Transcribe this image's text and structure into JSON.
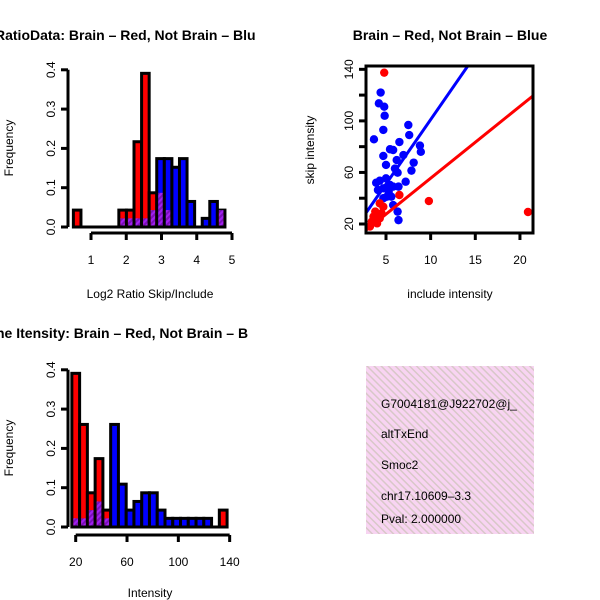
{
  "colors": {
    "brain": "#ff0000",
    "not_brain": "#0000ff",
    "overlap": "#a020f0",
    "pval": "#c00000",
    "info_bg": "#f8d4f2"
  },
  "chart_data": [
    {
      "type": "bar",
      "subtype": "overlaid-histogram",
      "title": "RatioData: Brain – Red, Not Brain – Blu",
      "xlabel": "Log2 Ratio Skip/Include",
      "ylabel": "Frequency",
      "xlim": [
        0.5,
        5
      ],
      "ylim": [
        0,
        0.4
      ],
      "xticks": [
        "1",
        "2",
        "3",
        "4",
        "5"
      ],
      "yticks": [
        "0.0",
        "0.1",
        "0.2",
        "0.3",
        "0.4"
      ],
      "bin_start": 0.5,
      "bin_width": 0.215,
      "series": [
        {
          "name": "Brain",
          "color": "red",
          "values": [
            0.043,
            0,
            0,
            0,
            0,
            0,
            0.043,
            0.043,
            0.217,
            0.391,
            0.087,
            0.087,
            0.043,
            0,
            0,
            0,
            0,
            0,
            0,
            0.043
          ]
        },
        {
          "name": "Not Brain",
          "color": "blue",
          "values": [
            0,
            0,
            0,
            0,
            0,
            0,
            0.022,
            0.022,
            0.022,
            0.022,
            0.043,
            0.174,
            0.174,
            0.152,
            0.174,
            0.065,
            0,
            0.022,
            0.065,
            0.043
          ]
        }
      ]
    },
    {
      "type": "scatter",
      "title": "Brain – Red, Not Brain – Blue",
      "xlabel": "include intensity",
      "ylabel": "skip intensity",
      "xlim": [
        2.7,
        21.4
      ],
      "ylim": [
        13,
        142.5
      ],
      "xticks": [
        "5",
        "10",
        "15",
        "20"
      ],
      "yticks": [
        "20",
        "60",
        "100",
        "140"
      ],
      "series": [
        {
          "name": "Not Brain",
          "color": "blue",
          "points": [
            [
              4.4,
              122
            ],
            [
              4.2,
              113.6
            ],
            [
              4.8,
              111
            ],
            [
              4.85,
              104
            ],
            [
              4.7,
              93
            ],
            [
              3.65,
              85.7
            ],
            [
              7.5,
              96.8
            ],
            [
              7.6,
              89
            ],
            [
              6.5,
              83.6
            ],
            [
              5.45,
              78
            ],
            [
              5.8,
              77.4
            ],
            [
              8.8,
              80.8
            ],
            [
              8.9,
              76
            ],
            [
              8.1,
              67.6
            ],
            [
              7.85,
              61.4
            ],
            [
              6.95,
              73.5
            ],
            [
              4.7,
              72.8
            ],
            [
              6.2,
              69.6
            ],
            [
              5,
              65.8
            ],
            [
              6,
              63
            ],
            [
              6.3,
              59.8
            ],
            [
              3.9,
              52
            ],
            [
              4.3,
              53.6
            ],
            [
              5,
              55.4
            ],
            [
              5.45,
              50.3
            ],
            [
              4.7,
              47.7
            ],
            [
              5.8,
              49
            ],
            [
              7.2,
              52.8
            ],
            [
              6.4,
              49
            ],
            [
              5.1,
              41.2
            ],
            [
              5.6,
              41.2
            ],
            [
              4.7,
              40
            ],
            [
              5.8,
              34.7
            ],
            [
              6.3,
              29.6
            ],
            [
              6.4,
              23
            ],
            [
              5.3,
              45
            ],
            [
              4.1,
              46.4
            ]
          ],
          "fit": {
            "slope": 10.0,
            "intercept": 1.0
          }
        },
        {
          "name": "Brain",
          "color": "red",
          "points": [
            [
              4.8,
              137.4
            ],
            [
              6.5,
              42.5
            ],
            [
              9.8,
              37.8
            ],
            [
              20.9,
              29.3
            ],
            [
              4.3,
              36
            ],
            [
              3.8,
              29.6
            ],
            [
              4.5,
              28.3
            ],
            [
              3.4,
              21.8
            ],
            [
              4,
              20.5
            ],
            [
              3.2,
              18
            ],
            [
              4.3,
              24.4
            ],
            [
              3.6,
              25.7
            ],
            [
              4.7,
              33.4
            ]
          ],
          "fit": {
            "slope": 5.58,
            "intercept": -0.3
          }
        }
      ]
    },
    {
      "type": "bar",
      "subtype": "overlaid-histogram",
      "title": "ne Itensity: Brain – Red, Not Brain – B",
      "xlabel": "Intensity",
      "ylabel": "Frequency",
      "xlim": [
        17,
        138
      ],
      "ylim": [
        0,
        0.4
      ],
      "xticks": [
        "20",
        "60",
        "100",
        "140"
      ],
      "yticks": [
        "0.0",
        "0.1",
        "0.2",
        "0.3",
        "0.4"
      ],
      "bin_start": 17,
      "bin_width": 6.05,
      "series": [
        {
          "name": "Brain",
          "color": "red",
          "values": [
            0.391,
            0.261,
            0.087,
            0.174,
            0.043,
            0,
            0,
            0,
            0,
            0,
            0,
            0,
            0,
            0,
            0,
            0,
            0,
            0,
            0,
            0.043
          ]
        },
        {
          "name": "Not Brain",
          "color": "blue",
          "values": [
            0.022,
            0.022,
            0.043,
            0.065,
            0.022,
            0.261,
            0.109,
            0.043,
            0.065,
            0.087,
            0.087,
            0.043,
            0.022,
            0.022,
            0.022,
            0.022,
            0.022,
            0.022,
            0,
            0
          ]
        }
      ]
    }
  ],
  "info_panel": {
    "lines": [
      "G7004181@J922702@j_",
      "altTxEnd",
      "Smoc2",
      "chr17.10609–3.3"
    ],
    "pval": "Pval: 2.000000"
  }
}
